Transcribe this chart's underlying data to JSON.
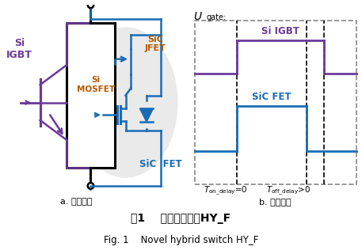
{
  "title_zh": "图1    新型混合器件HY_F",
  "title_en": "Fig. 1    Novel hybrid switch HY_F",
  "label_a": "a. 基本结构",
  "label_b": "b. 开关模式",
  "si_igbt_label": "Si\nIGBT",
  "sic_jfet_label": "SiC\nJFET",
  "si_mosfet_label": "Si\nMOSFET",
  "sic_fet_label_circuit": "SiC  FET",
  "sic_fet_label_waveform": "SiC FET",
  "si_igbt_label_waveform": "Si IGBT",
  "u_gate_label": "U",
  "gate_subscript": "gate:",
  "ton_label": "T",
  "ton_subscript": "on_delay",
  "ton_value": "=0",
  "toff_label": "T",
  "toff_subscript": "off_delay",
  "toff_value": ">0",
  "purple": "#6B3A9B",
  "blue": "#1A6CB5",
  "orange": "#B35A00",
  "black": "#000000",
  "gray_ellipse": "#DCDCDC",
  "dashed_color": "#888888",
  "background": "#FFFFFF"
}
